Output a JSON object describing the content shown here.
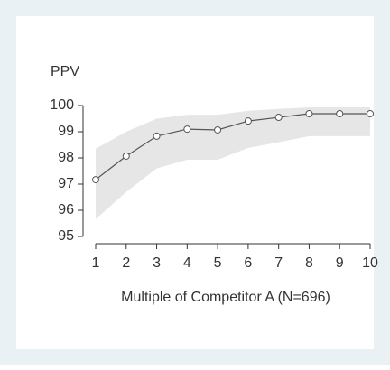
{
  "chart_data": {
    "type": "line",
    "y_label": "PPV",
    "x_label": "Multiple of Competitor A (N=696)",
    "x": [
      1,
      2,
      3,
      4,
      5,
      6,
      7,
      8,
      9,
      10
    ],
    "series": [
      {
        "color": "#555555",
        "values": [
          97.17,
          98.07,
          98.83,
          99.1,
          99.07,
          99.41,
          99.55,
          99.69,
          99.69,
          99.69
        ]
      }
    ],
    "band": {
      "color": "#e6e6e6",
      "lower": [
        95.66,
        96.7,
        97.6,
        97.93,
        97.93,
        98.38,
        98.6,
        98.83,
        98.83,
        98.83
      ],
      "upper": [
        98.35,
        99.0,
        99.5,
        99.65,
        99.65,
        99.8,
        99.87,
        99.93,
        99.93,
        99.93
      ]
    },
    "xlim": [
      1,
      10
    ],
    "xticks": [
      1,
      2,
      3,
      4,
      5,
      6,
      7,
      8,
      9,
      10
    ],
    "ylim": [
      95,
      100
    ],
    "yticks": [
      95,
      96,
      97,
      98,
      99,
      100
    ]
  }
}
